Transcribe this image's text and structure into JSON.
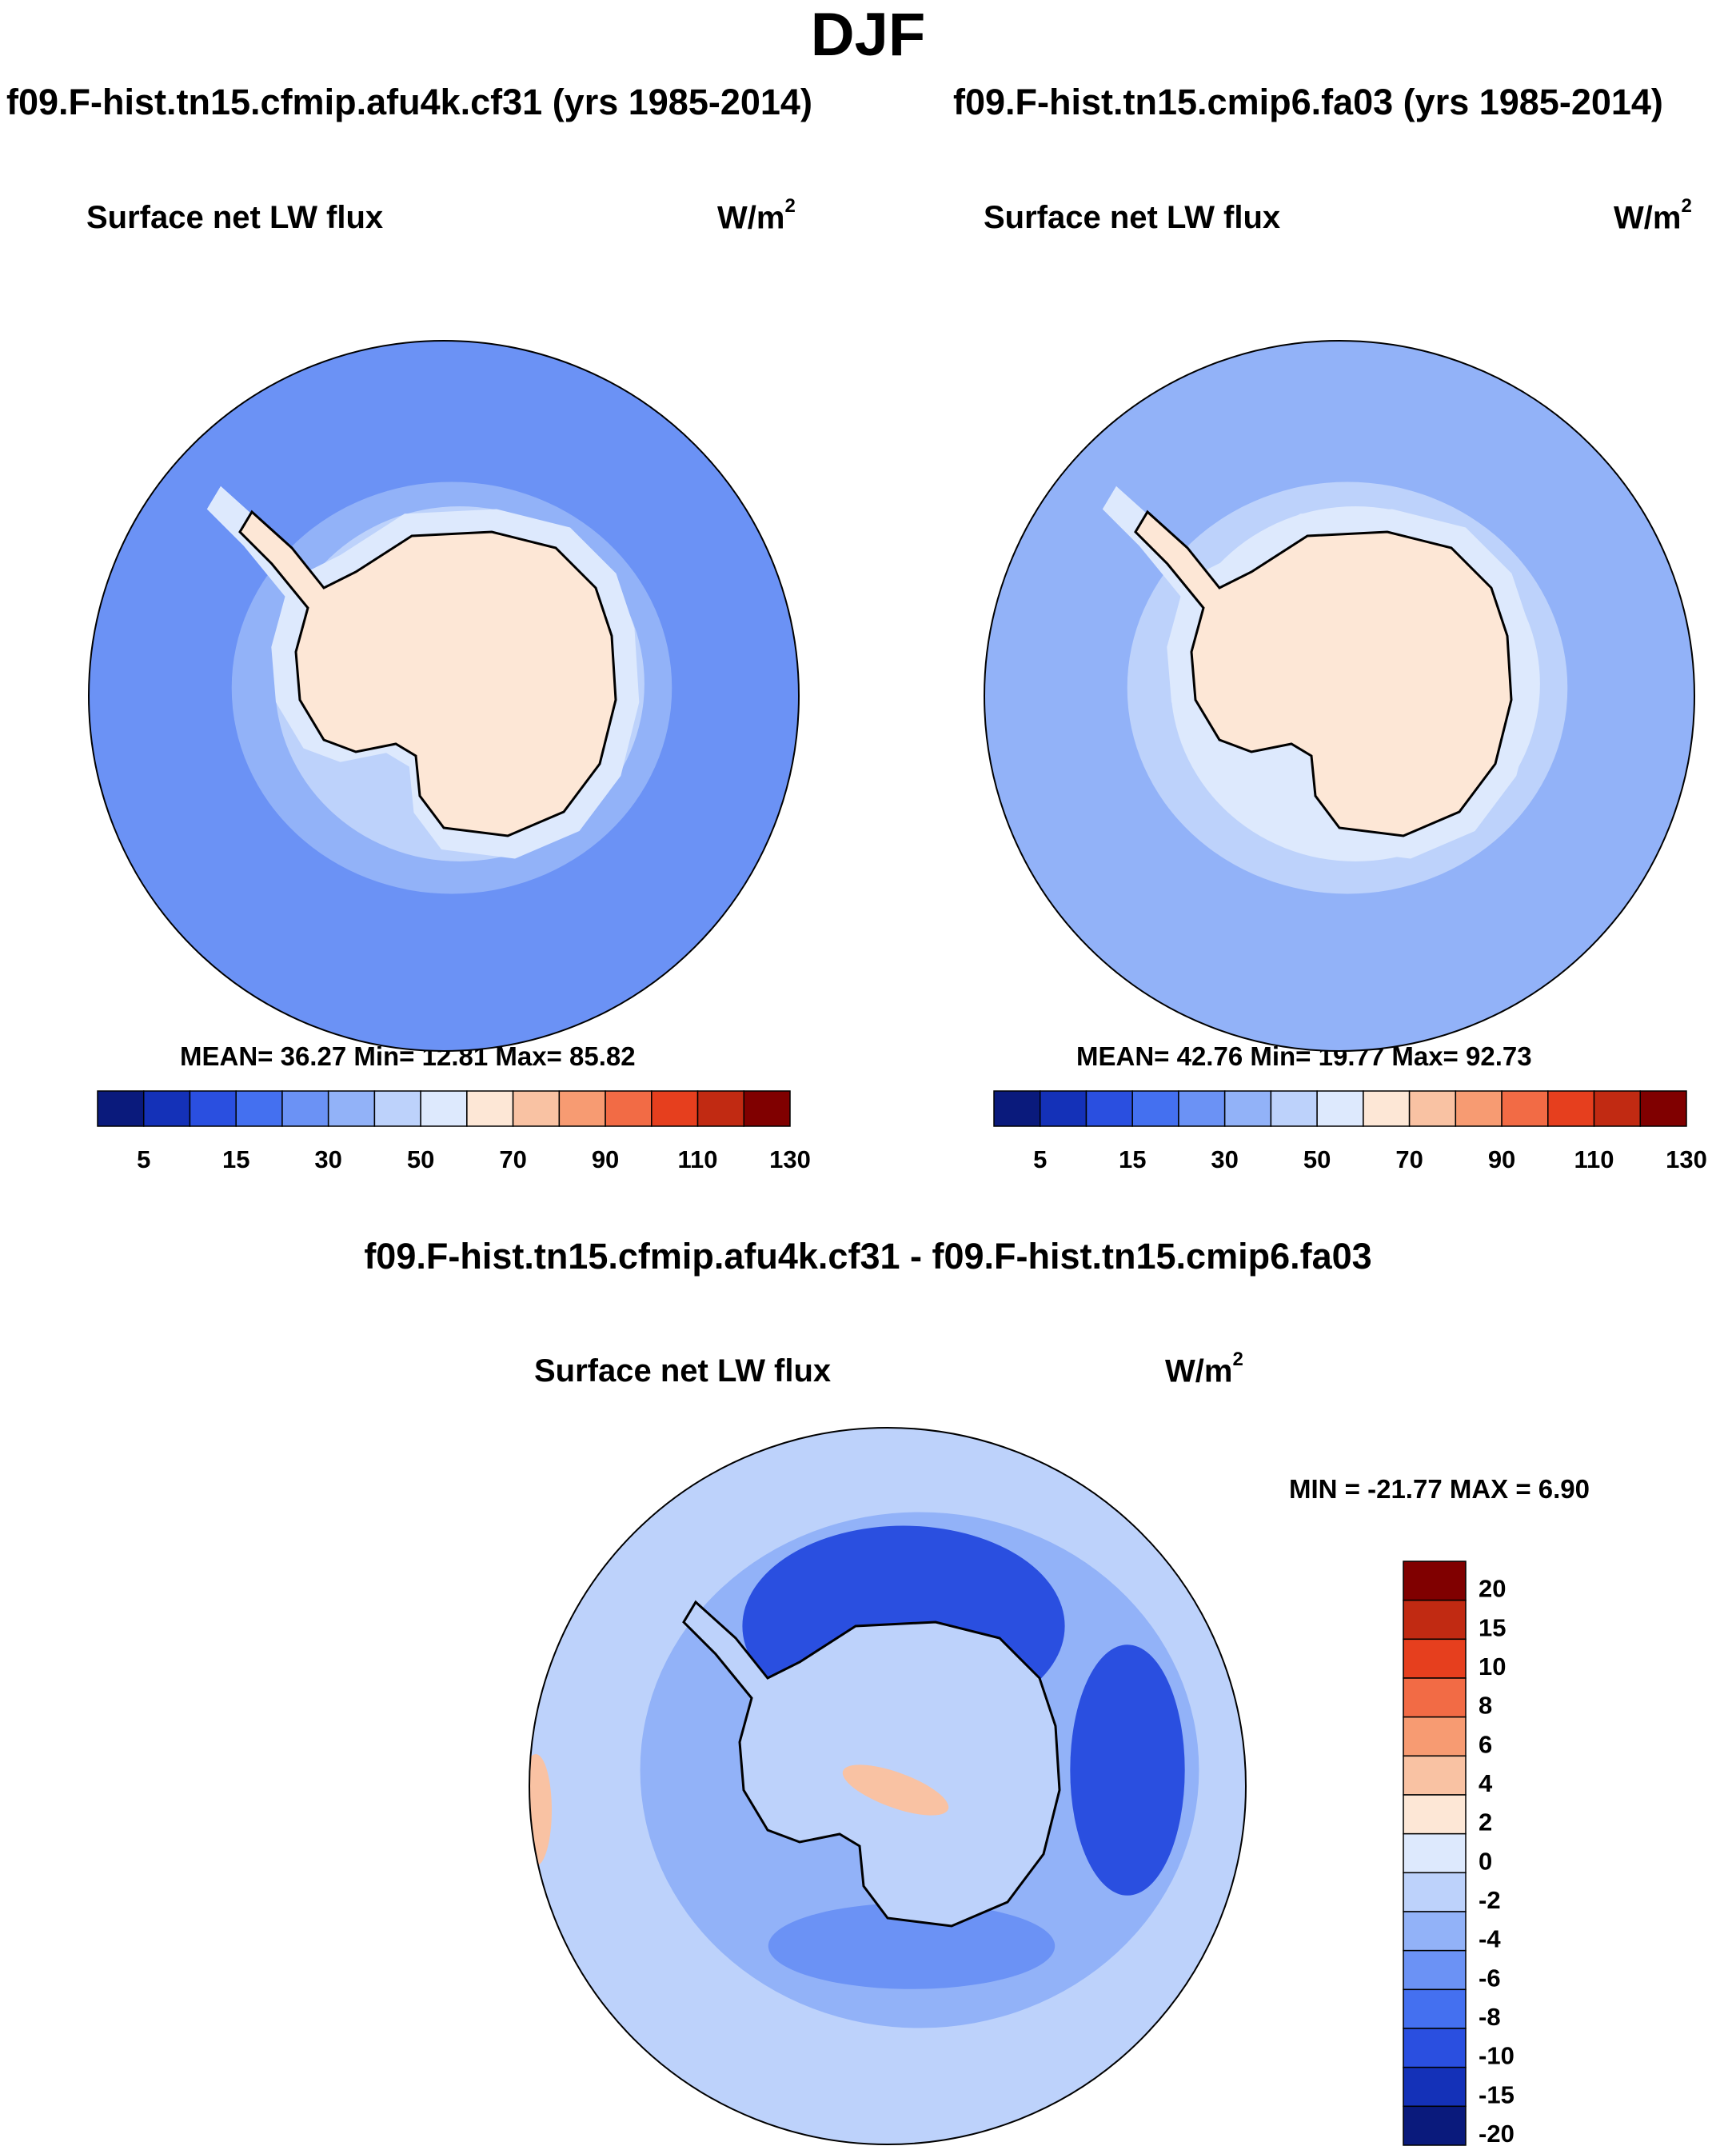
{
  "title": "DJF",
  "panels": [
    {
      "case_title": "f09.F-hist.tn15.cfmip.afu4k.cf31 (yrs 1985-2014)",
      "variable": "Surface net LW flux",
      "units": "W/m",
      "units_sup": "2",
      "stats_text": "MEAN=  36.27  Min=  12.81  Max=  85.82"
    },
    {
      "case_title": "f09.F-hist.tn15.cmip6.fa03 (yrs 1985-2014)",
      "variable": "Surface net LW flux",
      "units": "W/m",
      "units_sup": "2",
      "stats_text": "MEAN=  42.76  Min=  19.77  Max=  92.73"
    }
  ],
  "diff_panel": {
    "title": "f09.F-hist.tn15.cfmip.afu4k.cf31 - f09.F-hist.tn15.cmip6.fa03",
    "variable": "Surface net LW flux",
    "units": "W/m",
    "units_sup": "2",
    "stats_text": "MIN = -21.77 MAX =   6.90"
  },
  "chart_data": [
    {
      "type": "heatmap",
      "projection": "south polar stereographic",
      "title": "Surface net LW flux",
      "case": "f09.F-hist.tn15.cfmip.afu4k.cf31",
      "units": "W/m2",
      "mean": 36.27,
      "min": 12.81,
      "max": 85.82,
      "colorbar_colors": [
        "#0a1a7c",
        "#1431b8",
        "#2a4fe0",
        "#4470f0",
        "#6b92f5",
        "#92b2f8",
        "#bdd2fb",
        "#dde9fd",
        "#fde7d6",
        "#f9c2a3",
        "#f79b72",
        "#f26b45",
        "#e63f1e",
        "#c12a12",
        "#800000"
      ],
      "colorbar_labels": [
        "5",
        "15",
        "30",
        "50",
        "70",
        "90",
        "110",
        "130"
      ],
      "regions": {
        "open_ocean": 25,
        "sea_ice_margin": 45,
        "antarctic_interior": 62
      }
    },
    {
      "type": "heatmap",
      "projection": "south polar stereographic",
      "title": "Surface net LW flux",
      "case": "f09.F-hist.tn15.cmip6.fa03",
      "units": "W/m2",
      "mean": 42.76,
      "min": 19.77,
      "max": 92.73,
      "colorbar_colors": [
        "#0a1a7c",
        "#1431b8",
        "#2a4fe0",
        "#4470f0",
        "#6b92f5",
        "#92b2f8",
        "#bdd2fb",
        "#dde9fd",
        "#fde7d6",
        "#f9c2a3",
        "#f79b72",
        "#f26b45",
        "#e63f1e",
        "#c12a12",
        "#800000"
      ],
      "colorbar_labels": [
        "5",
        "15",
        "30",
        "50",
        "70",
        "90",
        "110",
        "130"
      ],
      "regions": {
        "open_ocean": 32,
        "sea_ice_margin": 52,
        "antarctic_interior": 68
      }
    },
    {
      "type": "heatmap",
      "projection": "south polar stereographic",
      "title": "Surface net LW flux",
      "case": "difference",
      "units": "W/m2",
      "min": -21.77,
      "max": 6.9,
      "colorbar_colors": [
        "#800000",
        "#c12a12",
        "#e63f1e",
        "#f26b45",
        "#f79b72",
        "#f9c2a3",
        "#fde7d6",
        "#dde9fd",
        "#bdd2fb",
        "#92b2f8",
        "#6b92f5",
        "#4470f0",
        "#2a4fe0",
        "#1431b8",
        "#0a1a7c"
      ],
      "colorbar_labels": [
        "20",
        "15",
        "10",
        "8",
        "6",
        "4",
        "2",
        "0",
        "-2",
        "-4",
        "-6",
        "-8",
        "-10",
        "-15",
        "-20"
      ],
      "regions": {
        "open_ocean": -8,
        "far_ocean": -3,
        "antarctic_interior": -4,
        "ross_ice_shelf": 2
      }
    }
  ]
}
